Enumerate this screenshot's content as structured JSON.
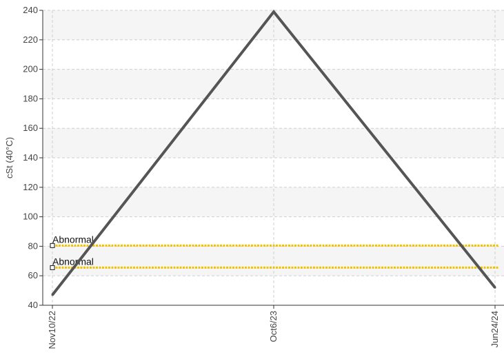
{
  "chart_data": {
    "type": "line",
    "ylabel": "cSt (40°C)",
    "ylim": [
      40,
      240
    ],
    "yticks": [
      40,
      60,
      80,
      100,
      120,
      140,
      160,
      180,
      200,
      220,
      240
    ],
    "x": [
      "Nov10/22",
      "Oct6/23",
      "Jun24/24"
    ],
    "series": [
      {
        "values": [
          47,
          239,
          52
        ],
        "color": "#555555"
      }
    ],
    "thresholds": [
      {
        "label": "Abnormal",
        "value": 80.5,
        "color": "#f2c200"
      },
      {
        "label": "Abnormal",
        "value": 65.5,
        "color": "#f2c200"
      }
    ],
    "grid": true,
    "band_color": "#f5f5f5"
  }
}
